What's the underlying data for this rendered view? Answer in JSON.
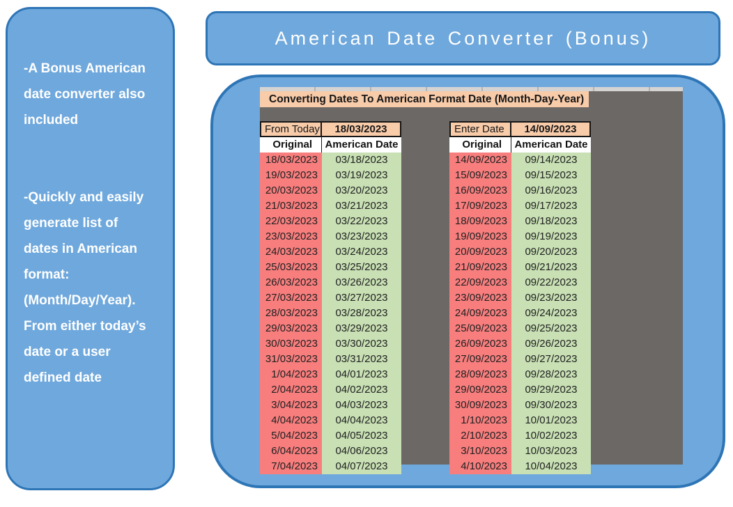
{
  "sidebar": {
    "note1": "-A Bonus American\ndate converter also\nincluded",
    "note2": "-Quickly and easily\ngenerate list of\ndates in American\nformat:\n(Month/Day/Year).\nFrom either today’s\ndate or a user\ndefined date"
  },
  "title": "American Date Converter (Bonus)",
  "spreadsheet": {
    "banner": "Converting Dates To American Format Date (Month-Day-Year)",
    "tables": [
      {
        "label": "From Today",
        "value": "18/03/2023",
        "col1": "Original",
        "col2": "American Date",
        "rows": [
          [
            "18/03/2023",
            "03/18/2023"
          ],
          [
            "19/03/2023",
            "03/19/2023"
          ],
          [
            "20/03/2023",
            "03/20/2023"
          ],
          [
            "21/03/2023",
            "03/21/2023"
          ],
          [
            "22/03/2023",
            "03/22/2023"
          ],
          [
            "23/03/2023",
            "03/23/2023"
          ],
          [
            "24/03/2023",
            "03/24/2023"
          ],
          [
            "25/03/2023",
            "03/25/2023"
          ],
          [
            "26/03/2023",
            "03/26/2023"
          ],
          [
            "27/03/2023",
            "03/27/2023"
          ],
          [
            "28/03/2023",
            "03/28/2023"
          ],
          [
            "29/03/2023",
            "03/29/2023"
          ],
          [
            "30/03/2023",
            "03/30/2023"
          ],
          [
            "31/03/2023",
            "03/31/2023"
          ],
          [
            "1/04/2023",
            "04/01/2023"
          ],
          [
            "2/04/2023",
            "04/02/2023"
          ],
          [
            "3/04/2023",
            "04/03/2023"
          ],
          [
            "4/04/2023",
            "04/04/2023"
          ],
          [
            "5/04/2023",
            "04/05/2023"
          ],
          [
            "6/04/2023",
            "04/06/2023"
          ],
          [
            "7/04/2023",
            "04/07/2023"
          ]
        ]
      },
      {
        "label": "Enter Date",
        "value": "14/09/2023",
        "col1": "Original",
        "col2": "American Date",
        "rows": [
          [
            "14/09/2023",
            "09/14/2023"
          ],
          [
            "15/09/2023",
            "09/15/2023"
          ],
          [
            "16/09/2023",
            "09/16/2023"
          ],
          [
            "17/09/2023",
            "09/17/2023"
          ],
          [
            "18/09/2023",
            "09/18/2023"
          ],
          [
            "19/09/2023",
            "09/19/2023"
          ],
          [
            "20/09/2023",
            "09/20/2023"
          ],
          [
            "21/09/2023",
            "09/21/2023"
          ],
          [
            "22/09/2023",
            "09/22/2023"
          ],
          [
            "23/09/2023",
            "09/23/2023"
          ],
          [
            "24/09/2023",
            "09/24/2023"
          ],
          [
            "25/09/2023",
            "09/25/2023"
          ],
          [
            "26/09/2023",
            "09/26/2023"
          ],
          [
            "27/09/2023",
            "09/27/2023"
          ],
          [
            "28/09/2023",
            "09/28/2023"
          ],
          [
            "29/09/2023",
            "09/29/2023"
          ],
          [
            "30/09/2023",
            "09/30/2023"
          ],
          [
            "1/10/2023",
            "10/01/2023"
          ],
          [
            "2/10/2023",
            "10/02/2023"
          ],
          [
            "3/10/2023",
            "10/03/2023"
          ],
          [
            "4/10/2023",
            "10/04/2023"
          ]
        ]
      }
    ]
  },
  "colors": {
    "panel-blue": "#6FA8DC",
    "panel-border": "#2E75B6",
    "shot-gray": "#6B6865",
    "peach": "#F8CBA9",
    "cell-red": "#F87E7E",
    "cell-green": "#C8E0B4"
  }
}
